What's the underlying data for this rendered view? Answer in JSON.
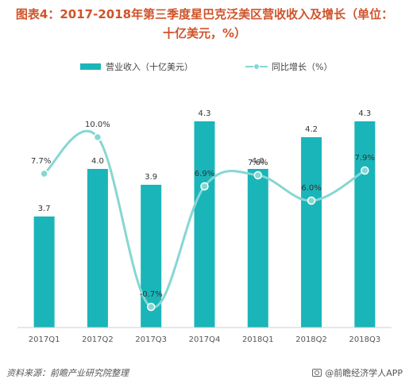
{
  "title_line1": "图表4：2017-2018年第三季度星巴克泛美区营收收入及增长（单位：",
  "title_line2": "十亿美元，%）",
  "footer": {
    "source": "资料来源：前瞻产业研究院整理",
    "brand": "@前瞻经济学人APP"
  },
  "colors": {
    "bar": "#1ab5b8",
    "line": "#86d7d2",
    "title": "#d0532a"
  },
  "chart_data": {
    "type": "bar",
    "categories": [
      "2017Q1",
      "2017Q2",
      "2017Q3",
      "2017Q4",
      "2018Q1",
      "2018Q2",
      "2018Q3"
    ],
    "series": [
      {
        "name": "营业收入（十亿美元）",
        "type": "bar",
        "axis": "left",
        "values": [
          3.7,
          4.0,
          3.9,
          4.3,
          4.0,
          4.2,
          4.3
        ],
        "labels": [
          "3.7",
          "4.0",
          "3.9",
          "4.3",
          "4.0",
          "4.2",
          "4.3"
        ]
      },
      {
        "name": "同比增长（%）",
        "type": "line",
        "axis": "right",
        "smooth": true,
        "values": [
          7.7,
          10.0,
          -0.7,
          6.9,
          7.6,
          6.0,
          7.9
        ],
        "labels": [
          "7.7%",
          "10.0%",
          "-0.7%",
          "6.9%",
          "7.6%",
          "6.0%",
          "7.9%"
        ]
      }
    ],
    "ylim_left": [
      3.0,
      4.4
    ],
    "ylim_right": [
      -2.0,
      12.0
    ],
    "legend_position": "top",
    "grid": false
  }
}
